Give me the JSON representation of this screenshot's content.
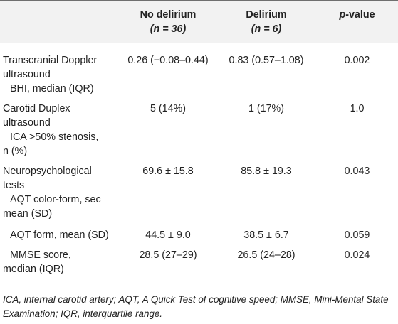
{
  "header": {
    "col1": "",
    "col2_line1": "No delirium",
    "col2_line2": "(n = 36)",
    "col3_line1": "Delirium",
    "col3_line2": "(n = 6)",
    "col4_ital": "p",
    "col4_rest": "-value"
  },
  "rows": [
    {
      "label_lines": [
        "Transcranial Doppler",
        "ultrasound"
      ],
      "sub_label": "BHI, median (IQR)",
      "no_delirium": "0.26 (−0.08–0.44)",
      "delirium": "0.83 (0.57–1.08)",
      "p_value": "0.002"
    },
    {
      "label_lines": [
        "Carotid Duplex",
        "ultrasound"
      ],
      "sub_label": "ICA >50% stenosis,",
      "sub_label2": "n (%)",
      "no_delirium": "5 (14%)",
      "delirium": "1 (17%)",
      "p_value": "1.0"
    },
    {
      "label_lines": [
        "Neuropsychological",
        "tests"
      ],
      "sub_label": "AQT color-form, sec",
      "sub_label2": "mean (SD)",
      "no_delirium": "69.6 ± 15.8",
      "delirium": "85.8 ± 19.3",
      "p_value": "0.043"
    },
    {
      "sub_label": "AQT form, mean (SD)",
      "no_delirium": "44.5 ± 9.0",
      "delirium": "38.5 ± 6.7",
      "p_value": "0.059"
    },
    {
      "sub_label": "MMSE score,",
      "label_cont": "median (IQR)",
      "no_delirium": "28.5 (27–29)",
      "delirium": "26.5 (24–28)",
      "p_value": "0.024"
    }
  ],
  "footnote": "ICA, internal carotid artery; AQT, A Quick Test of cognitive speed; MMSE, Mini-Mental State Examination; IQR, interquartile range."
}
